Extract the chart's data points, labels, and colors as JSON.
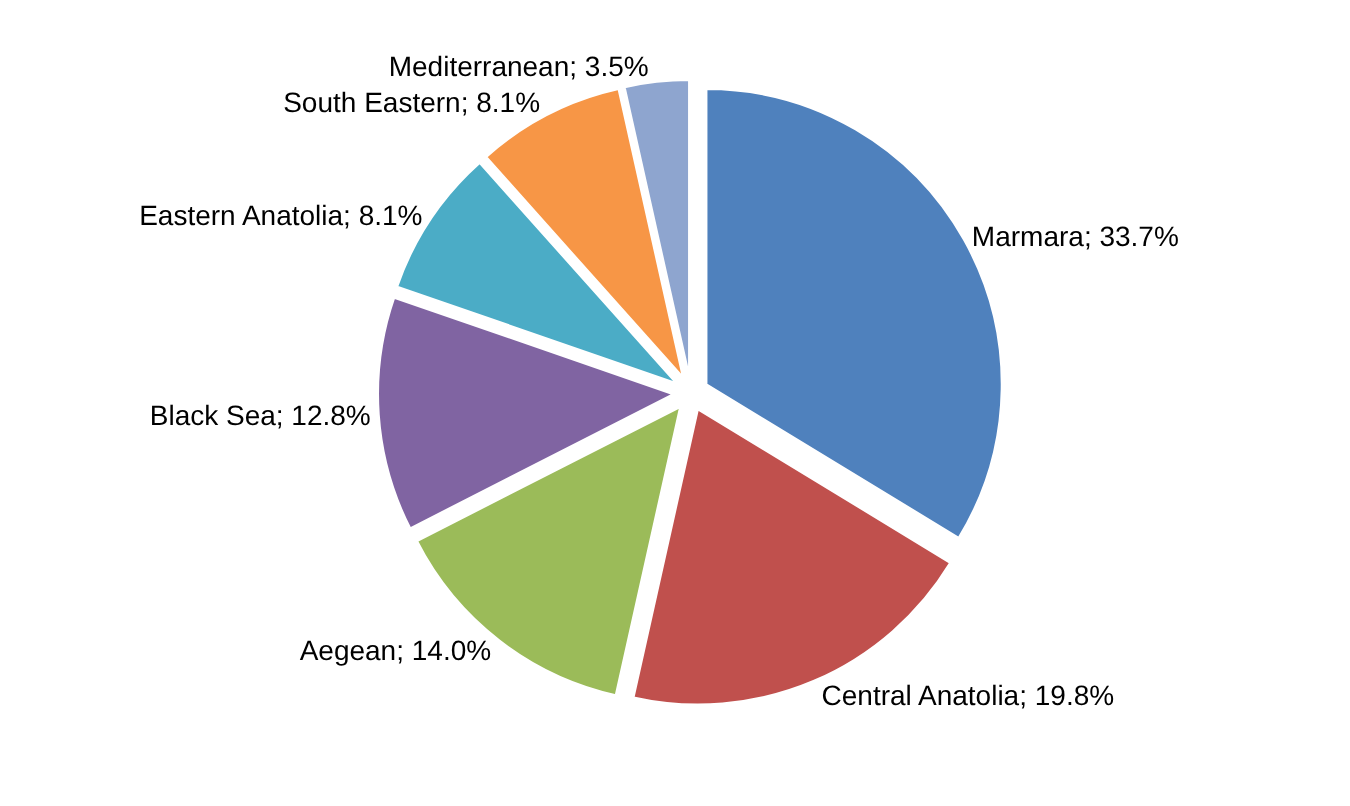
{
  "chart_data": {
    "type": "pie",
    "categories": [
      "Marmara",
      "Central Anatolia",
      "Aegean",
      "Black Sea",
      "Eastern Anatolia",
      "South Eastern",
      "Mediterranean"
    ],
    "values": [
      33.7,
      19.8,
      14.0,
      12.8,
      8.1,
      8.1,
      3.5
    ],
    "value_labels": [
      "33.7%",
      "19.8%",
      "14.0%",
      "12.8%",
      "8.1%",
      "8.1%",
      "3.5%"
    ],
    "colors": [
      "#4f81bd",
      "#c0504d",
      "#9bbb59",
      "#8064a2",
      "#4bacc6",
      "#f79646",
      "#8ea5cf"
    ],
    "legend": false
  }
}
